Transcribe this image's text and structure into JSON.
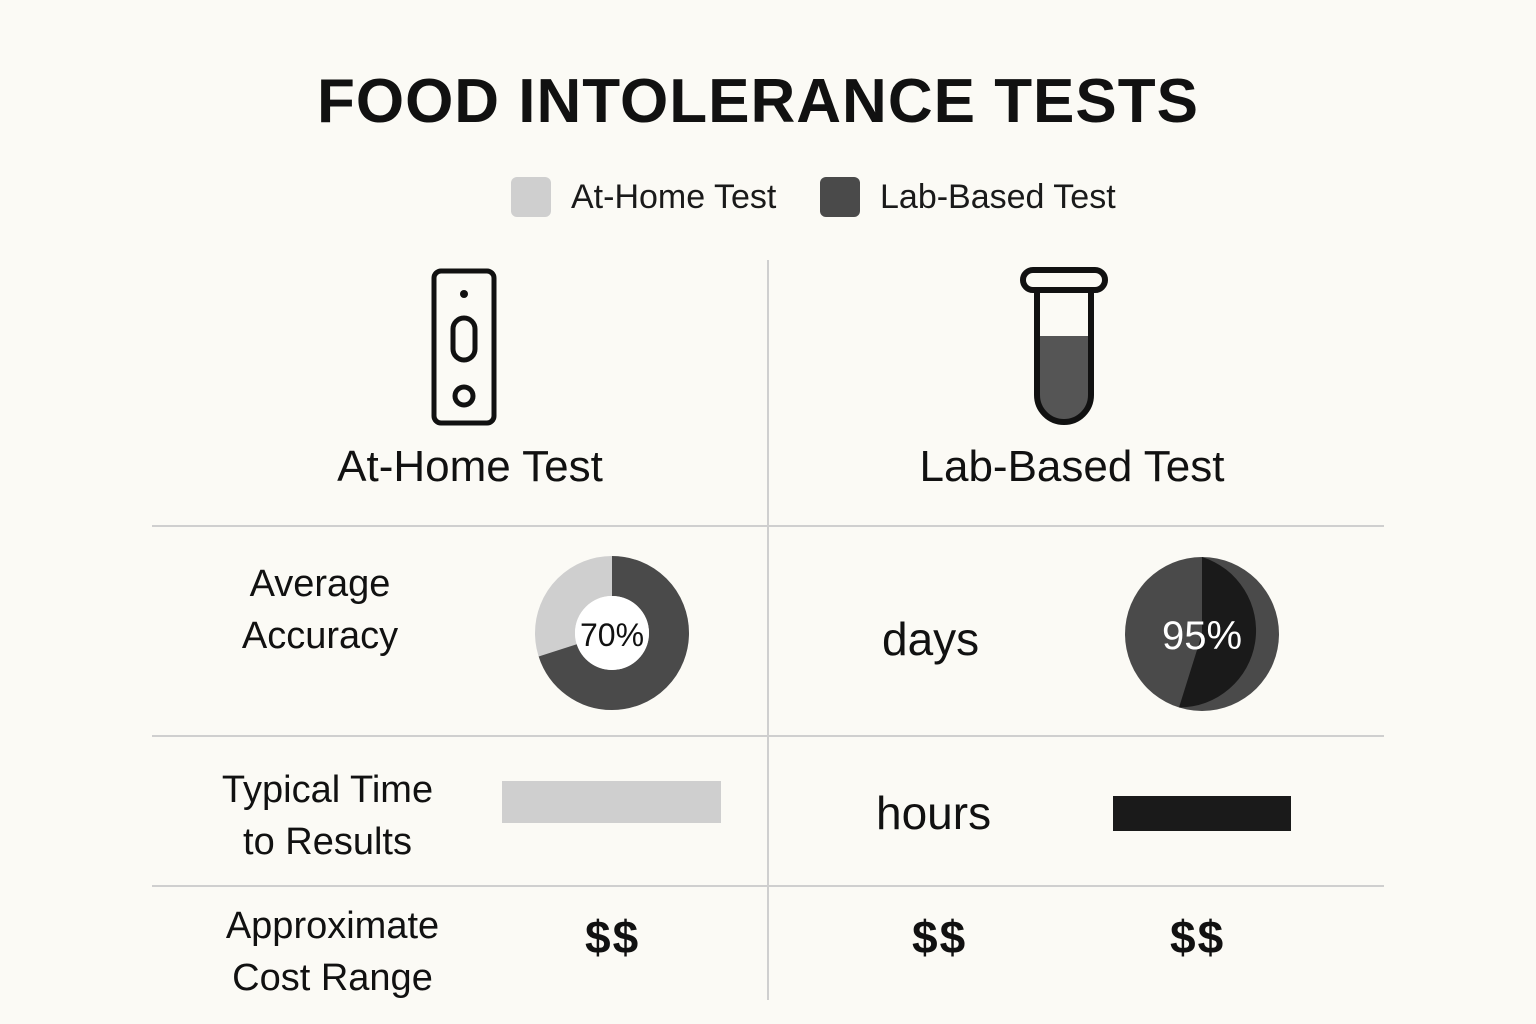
{
  "title": "FOOD INTOLERANCE TESTS",
  "legend": [
    {
      "label": "At-Home Test",
      "color": "#cfcfcf"
    },
    {
      "label": "Lab-Based Test",
      "color": "#4a4a4a"
    }
  ],
  "columns": {
    "home": {
      "title": "At-Home Test",
      "icon": "test-strip-icon"
    },
    "lab": {
      "title": "Lab-Based Test",
      "icon": "test-tube-icon"
    }
  },
  "rows": {
    "accuracy": {
      "label_line1": "Average",
      "label_line2": "Accuracy",
      "home_value": "70%",
      "home_fraction": 0.7,
      "lab_unit": "days",
      "lab_value": "95%",
      "lab_fraction": 0.95
    },
    "time": {
      "label_line1": "Typical Time",
      "label_line2": "to Results",
      "lab_unit": "hours"
    },
    "cost": {
      "label_line1": "Approximate",
      "label_line2": "Cost Range",
      "home_value": "$$",
      "lab_value_1": "$$",
      "lab_value_2": "$$"
    }
  },
  "colors": {
    "light": "#cfcfcf",
    "dark": "#4a4a4a",
    "black": "#1a1a1a",
    "divider": "#cfcfcf",
    "background": "#fbfaf5"
  }
}
